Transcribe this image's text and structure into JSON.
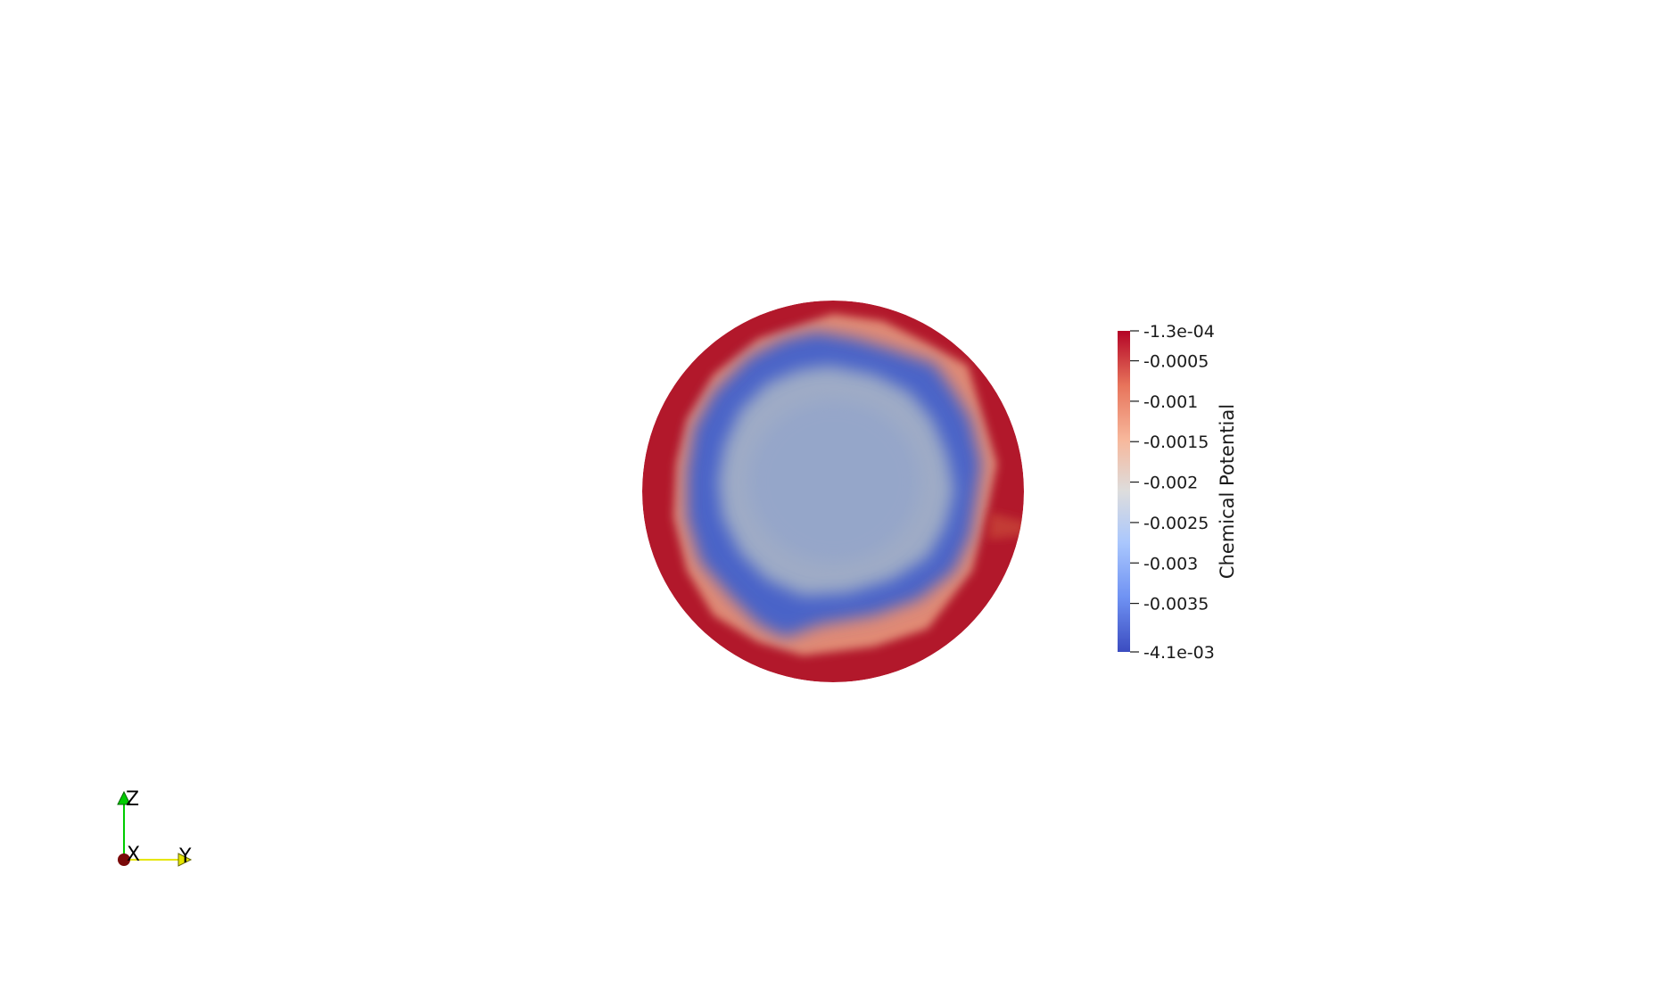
{
  "colorbar": {
    "title": "Chemical Potential",
    "range_max_label": "-1.3e-04",
    "range_min_label": "-4.1e-03",
    "range_max": -0.00013,
    "range_min": -0.0041,
    "colormap": [
      "#3b4cc0",
      "#6f92f3",
      "#aac7fd",
      "#dddddd",
      "#f7b89c",
      "#e7745b",
      "#b40426"
    ],
    "ticks": [
      {
        "value": -0.0005,
        "label": "-0.0005"
      },
      {
        "value": -0.001,
        "label": "-0.001"
      },
      {
        "value": -0.0015,
        "label": "-0.0015"
      },
      {
        "value": -0.002,
        "label": "-0.002"
      },
      {
        "value": -0.0025,
        "label": "-0.0025"
      },
      {
        "value": -0.003,
        "label": "-0.003"
      },
      {
        "value": -0.0035,
        "label": "-0.0035"
      }
    ]
  },
  "orientation_axes": {
    "z_label": "Z",
    "x_label": "X",
    "y_label": "Y",
    "z_color": "#00cc00",
    "y_color": "#e6e600",
    "x_color": "#7a0a0a"
  },
  "colors": {
    "rim": "#b2182b",
    "ring": "#4a64c8",
    "core": "#93a5c8"
  }
}
